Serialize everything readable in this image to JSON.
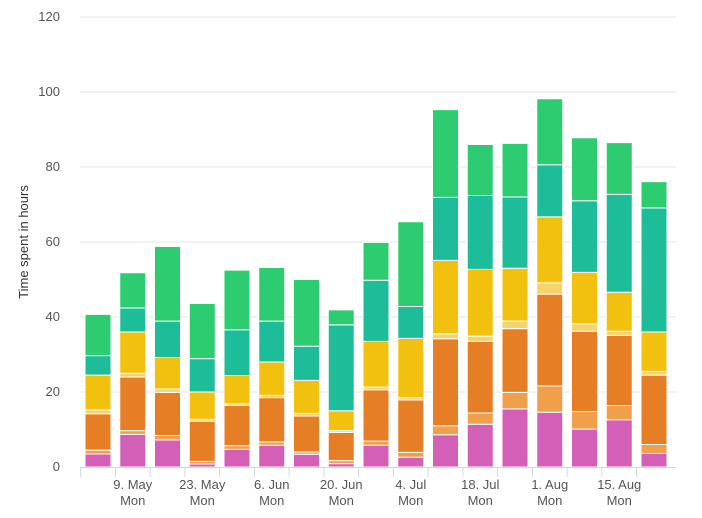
{
  "chart_data": {
    "type": "bar",
    "stacked": true,
    "ylabel": "Time spent in hours",
    "ylim": [
      0,
      120
    ],
    "yticks": [
      0,
      20,
      40,
      60,
      80,
      100,
      120
    ],
    "grid": true,
    "x": [
      "2022-05-02",
      "2022-05-09",
      "2022-05-16",
      "2022-05-23",
      "2022-05-30",
      "2022-06-06",
      "2022-06-13",
      "2022-06-20",
      "2022-06-27",
      "2022-07-04",
      "2022-07-11",
      "2022-07-18",
      "2022-07-25",
      "2022-08-01",
      "2022-08-08",
      "2022-08-15",
      "2022-08-22"
    ],
    "tick_labels": [
      {
        "x_index": 1,
        "line1": "9. May",
        "line2": "Mon"
      },
      {
        "x_index": 3,
        "line1": "23. May",
        "line2": "Mon"
      },
      {
        "x_index": 5,
        "line1": "6. Jun",
        "line2": "Mon"
      },
      {
        "x_index": 7,
        "line1": "20. Jun",
        "line2": "Mon"
      },
      {
        "x_index": 9,
        "line1": "4. Jul",
        "line2": "Mon"
      },
      {
        "x_index": 11,
        "line1": "18. Jul",
        "line2": "Mon"
      },
      {
        "x_index": 13,
        "line1": "1. Aug",
        "line2": "Mon"
      },
      {
        "x_index": 15,
        "line1": "15. Aug",
        "line2": "Mon"
      }
    ],
    "series": [
      {
        "color": "#d35fb7",
        "values": [
          3.5,
          8.7,
          7.2,
          0.8,
          4.7,
          5.8,
          3.4,
          0.9,
          5.8,
          2.6,
          8.6,
          11.4,
          15.5,
          14.6,
          10.1,
          12.6,
          3.6
        ]
      },
      {
        "color": "#f0a04b",
        "values": [
          1.0,
          1.0,
          1.2,
          0.7,
          1.0,
          0.9,
          0.6,
          0.8,
          1.1,
          1.3,
          2.4,
          3.0,
          4.4,
          7.0,
          4.7,
          3.8,
          2.4
        ]
      },
      {
        "color": "#e57e25",
        "values": [
          9.7,
          14.3,
          11.5,
          10.7,
          10.7,
          11.8,
          9.6,
          7.5,
          13.7,
          14.0,
          23.2,
          19.1,
          17.0,
          24.5,
          21.4,
          18.7,
          18.5
        ]
      },
      {
        "color": "#f7d36b",
        "values": [
          1.0,
          1.0,
          0.9,
          0.5,
          0.5,
          0.6,
          0.7,
          0.5,
          0.7,
          0.6,
          1.3,
          1.4,
          2.0,
          3.0,
          2.0,
          1.1,
          1.0
        ]
      },
      {
        "color": "#f2c110",
        "values": [
          9.3,
          11.0,
          8.4,
          7.3,
          7.5,
          8.9,
          8.8,
          5.3,
          12.2,
          15.8,
          19.6,
          17.8,
          14.1,
          17.6,
          13.7,
          10.4,
          10.5
        ]
      },
      {
        "color": "#1dbd9a",
        "values": [
          5.2,
          6.4,
          9.7,
          8.9,
          12.2,
          10.9,
          9.1,
          22.9,
          16.3,
          8.5,
          16.8,
          19.7,
          19.0,
          13.9,
          19.1,
          26.1,
          33.1
        ]
      },
      {
        "color": "#2ecc71",
        "values": [
          11.0,
          9.4,
          19.9,
          14.7,
          15.9,
          14.3,
          17.8,
          4.0,
          10.1,
          22.6,
          23.4,
          13.6,
          14.3,
          17.6,
          16.8,
          13.8,
          7.0
        ]
      }
    ]
  }
}
